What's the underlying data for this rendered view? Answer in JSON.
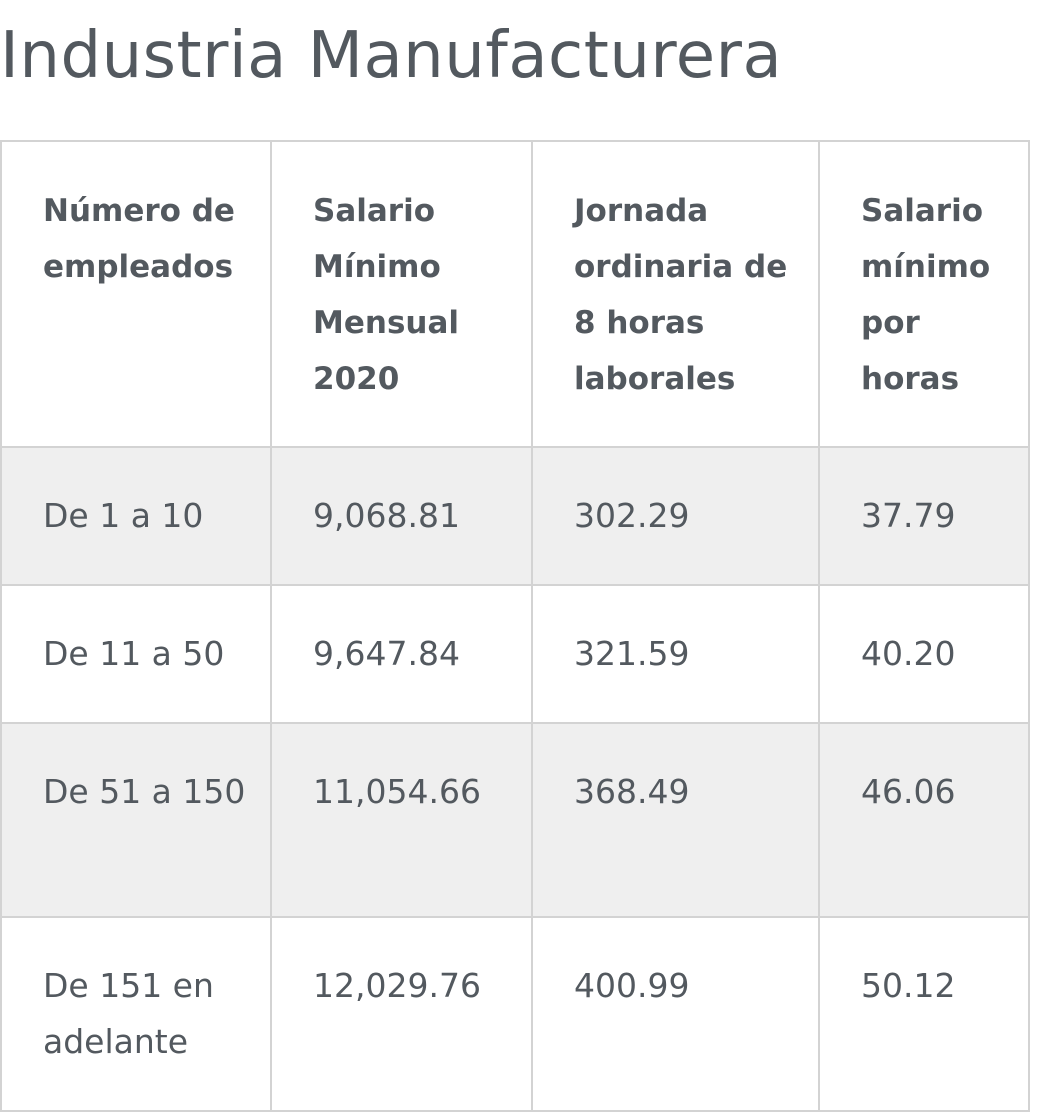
{
  "title": "Industria Manufacturera",
  "table": {
    "headers": [
      "Número de empleados",
      "Salario Mínimo Mensual 2020",
      "Jornada ordinaria de 8 horas laborales",
      "Salario mínimo por horas"
    ],
    "rows": [
      [
        "De 1 a 10",
        "9,068.81",
        "302.29",
        "37.79"
      ],
      [
        "De 11 a 50",
        "9,647.84",
        "321.59",
        "40.20"
      ],
      [
        "De 51 a 150",
        "11,054.66",
        "368.49",
        "46.06"
      ],
      [
        "De 151 en adelante",
        "12,029.76",
        "400.99",
        "50.12"
      ]
    ]
  },
  "colors": {
    "text": "#53595f",
    "border": "#d3d3d3",
    "shaded_row": "#efefef",
    "background": "#ffffff"
  }
}
